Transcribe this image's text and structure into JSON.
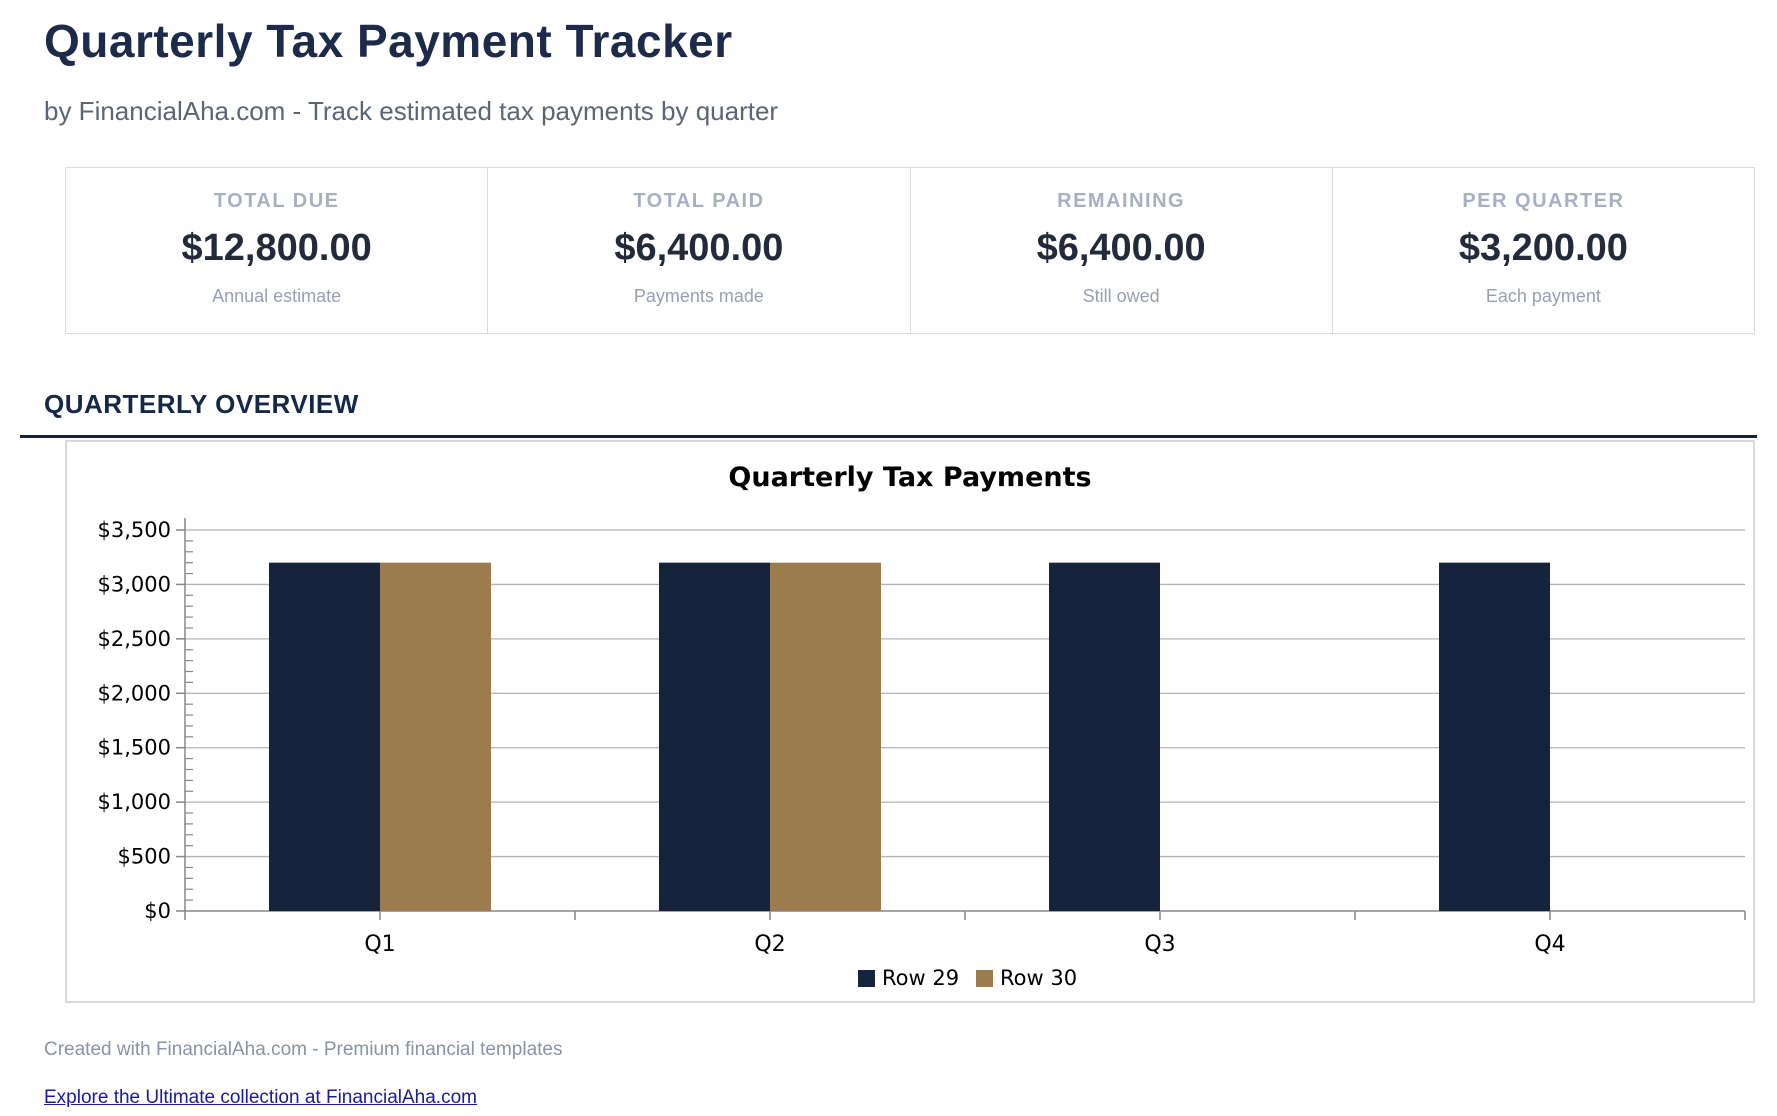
{
  "page": {
    "title": "Quarterly Tax Payment Tracker",
    "subtitle": "by FinancialAha.com - Track estimated tax payments by quarter"
  },
  "stats": {
    "cards": [
      {
        "label": "TOTAL DUE",
        "value": "$12,800.00",
        "caption": "Annual estimate"
      },
      {
        "label": "TOTAL PAID",
        "value": "$6,400.00",
        "caption": "Payments made"
      },
      {
        "label": "REMAINING",
        "value": "$6,400.00",
        "caption": "Still owed"
      },
      {
        "label": "PER QUARTER",
        "value": "$3,200.00",
        "caption": "Each payment"
      }
    ]
  },
  "section": {
    "title": "QUARTERLY OVERVIEW"
  },
  "chart_data": {
    "type": "bar",
    "title": "Quarterly Tax Payments",
    "categories": [
      "Q1",
      "Q2",
      "Q3",
      "Q4"
    ],
    "series": [
      {
        "name": "Row 29",
        "color": "#16233d",
        "values": [
          3200,
          3200,
          3200,
          3200
        ]
      },
      {
        "name": "Row 30",
        "color": "#9c7c4e",
        "values": [
          3200,
          3200,
          0,
          0
        ]
      }
    ],
    "xlabel": "",
    "ylabel": "",
    "ylim": [
      0,
      3500
    ],
    "ytick_step": 500,
    "yminor_step": 100,
    "ytick_labels": [
      "$0",
      "$500",
      "$1,000",
      "$1,500",
      "$2,000",
      "$2,500",
      "$3,000",
      "$3,500"
    ],
    "grid": true,
    "legend_position": "bottom"
  },
  "footer": {
    "credit": "Created with FinancialAha.com - Premium financial templates",
    "link_text": "Explore the Ultimate collection at FinancialAha.com"
  },
  "theme": {
    "navy": "#16233d",
    "tan": "#9c7c4e",
    "grid_color": "#b3b3b3",
    "axis_color": "#878787",
    "heading_color": "#1c2b4a",
    "link_color": "#1a1a9e"
  }
}
